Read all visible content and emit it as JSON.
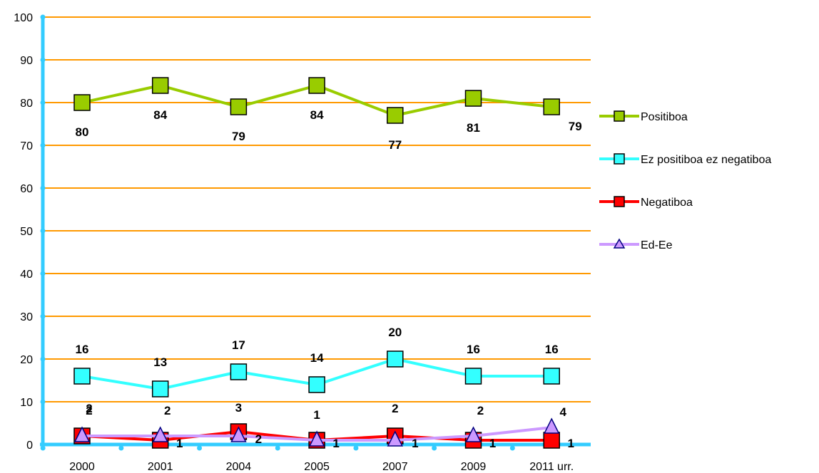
{
  "chart_data": {
    "type": "line",
    "categories": [
      "2000",
      "2001",
      "2004",
      "2005",
      "2007",
      "2009",
      "2011 urr."
    ],
    "ylim": [
      0,
      100
    ],
    "yticks": [
      "0",
      "10",
      "20",
      "30",
      "40",
      "50",
      "60",
      "70",
      "80",
      "90",
      "100"
    ],
    "grid": true,
    "legend_position": "right",
    "series": [
      {
        "name": "Positiboa",
        "values": [
          80,
          84,
          79,
          84,
          77,
          81,
          79
        ],
        "labels": [
          "80",
          "84",
          "79",
          "84",
          "77",
          "81",
          "79"
        ],
        "line_color": "#99cc00",
        "marker_fill": "#99cc00",
        "marker": "square"
      },
      {
        "name": "Ez positiboa ez negatiboa",
        "values": [
          16,
          13,
          17,
          14,
          20,
          16,
          16
        ],
        "labels": [
          "16",
          "13",
          "17",
          "14",
          "20",
          "16",
          "16"
        ],
        "line_color": "#33ffff",
        "marker_fill": "#33ffff",
        "marker": "square"
      },
      {
        "name": "Negatiboa",
        "values": [
          2,
          1,
          3,
          1,
          2,
          1,
          1
        ],
        "labels": [
          "2",
          "1",
          "3",
          "1",
          "2",
          "1",
          "1"
        ],
        "line_color": "#ff0000",
        "marker_fill": "#ff0000",
        "marker": "square"
      },
      {
        "name": "Ed-Ee",
        "values": [
          2,
          2,
          2,
          1,
          1,
          2,
          4
        ],
        "labels": [
          "2",
          "2",
          "2",
          "1",
          "1",
          "2",
          "4"
        ],
        "line_color": "#cc99ff",
        "marker_fill": "#cc99ff",
        "marker": "triangle"
      }
    ]
  },
  "colors": {
    "axis": "#33ccff",
    "gridline": "#ff9900",
    "marker_stroke": "#000000",
    "triangle_stroke": "#000080"
  }
}
